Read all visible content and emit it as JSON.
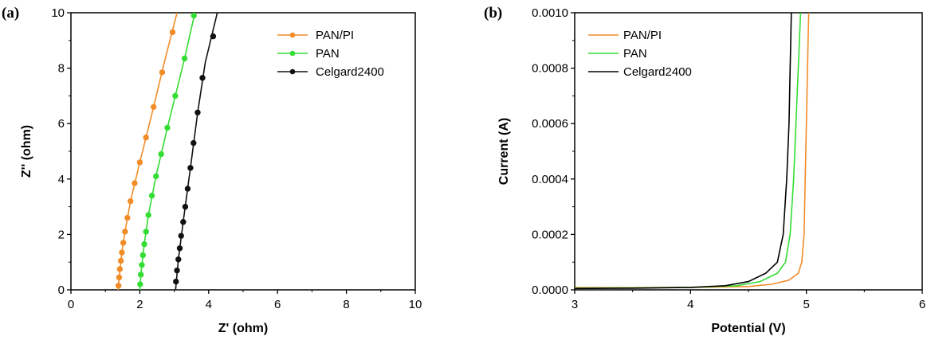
{
  "chart_data": [
    {
      "type": "scatter",
      "panel_label": "(a)",
      "xlabel": "Z' (ohm)",
      "ylabel": "Z'' (ohm)",
      "xlim": [
        0,
        10
      ],
      "ylim": [
        0,
        10
      ],
      "xticks": [
        "0",
        "2",
        "4",
        "6",
        "8",
        "10"
      ],
      "yticks": [
        "0",
        "2",
        "4",
        "6",
        "8",
        "10"
      ],
      "legend_position": "top-right",
      "series": [
        {
          "name": "PAN/PI",
          "color": "#F28C28",
          "points": [
            [
              1.38,
              0.15
            ],
            [
              1.4,
              0.45
            ],
            [
              1.42,
              0.75
            ],
            [
              1.45,
              1.05
            ],
            [
              1.48,
              1.35
            ],
            [
              1.52,
              1.7
            ],
            [
              1.57,
              2.1
            ],
            [
              1.64,
              2.6
            ],
            [
              1.73,
              3.2
            ],
            [
              1.85,
              3.85
            ],
            [
              2.0,
              4.6
            ],
            [
              2.18,
              5.5
            ],
            [
              2.4,
              6.6
            ],
            [
              2.65,
              7.85
            ],
            [
              2.95,
              9.3
            ]
          ],
          "line": [
            [
              1.37,
              0.0
            ],
            [
              1.4,
              0.45
            ],
            [
              1.48,
              1.35
            ],
            [
              1.57,
              2.1
            ],
            [
              1.73,
              3.2
            ],
            [
              2.0,
              4.6
            ],
            [
              2.4,
              6.6
            ],
            [
              2.75,
              8.4
            ],
            [
              3.08,
              10.0
            ]
          ]
        },
        {
          "name": "PAN",
          "color": "#33DD33",
          "points": [
            [
              2.01,
              0.2
            ],
            [
              2.03,
              0.55
            ],
            [
              2.06,
              0.9
            ],
            [
              2.09,
              1.25
            ],
            [
              2.13,
              1.65
            ],
            [
              2.18,
              2.1
            ],
            [
              2.25,
              2.7
            ],
            [
              2.35,
              3.4
            ],
            [
              2.47,
              4.1
            ],
            [
              2.62,
              4.9
            ],
            [
              2.8,
              5.85
            ],
            [
              3.03,
              7.0
            ],
            [
              3.3,
              8.35
            ],
            [
              3.57,
              9.9
            ]
          ],
          "line": [
            [
              2.0,
              0.0
            ],
            [
              2.03,
              0.55
            ],
            [
              2.13,
              1.65
            ],
            [
              2.25,
              2.7
            ],
            [
              2.47,
              4.1
            ],
            [
              2.8,
              5.85
            ],
            [
              3.3,
              8.35
            ],
            [
              3.6,
              10.0
            ]
          ]
        },
        {
          "name": "Celgard2400",
          "color": "#111111",
          "points": [
            [
              3.05,
              0.3
            ],
            [
              3.08,
              0.7
            ],
            [
              3.12,
              1.1
            ],
            [
              3.16,
              1.5
            ],
            [
              3.2,
              1.95
            ],
            [
              3.26,
              2.45
            ],
            [
              3.32,
              3.0
            ],
            [
              3.39,
              3.65
            ],
            [
              3.47,
              4.4
            ],
            [
              3.56,
              5.3
            ],
            [
              3.68,
              6.4
            ],
            [
              3.82,
              7.65
            ],
            [
              4.13,
              9.15
            ]
          ],
          "line": [
            [
              3.04,
              0.0
            ],
            [
              3.12,
              1.1
            ],
            [
              3.26,
              2.45
            ],
            [
              3.47,
              4.4
            ],
            [
              3.68,
              6.4
            ],
            [
              3.9,
              8.2
            ],
            [
              4.25,
              10.0
            ]
          ]
        }
      ]
    },
    {
      "type": "line",
      "panel_label": "(b)",
      "xlabel": "Potential (V)",
      "ylabel": "Current (A)",
      "xlim": [
        3,
        6
      ],
      "ylim": [
        0,
        0.001
      ],
      "xticks": [
        "3",
        "4",
        "5",
        "6"
      ],
      "yticks": [
        "0.0000",
        "0.0002",
        "0.0004",
        "0.0006",
        "0.0008",
        "0.0010"
      ],
      "legend_position": "top-left",
      "series": [
        {
          "name": "PAN/PI",
          "color": "#F28C28",
          "points": [
            [
              3.0,
              8e-06
            ],
            [
              3.5,
              8e-06
            ],
            [
              4.0,
              9e-06
            ],
            [
              4.5,
              1.2e-05
            ],
            [
              4.7,
              2e-05
            ],
            [
              4.85,
              3.5e-05
            ],
            [
              4.93,
              6e-05
            ],
            [
              4.96,
              0.0001
            ],
            [
              4.98,
              0.0002
            ],
            [
              4.99,
              0.0004
            ],
            [
              5.0,
              0.0006
            ],
            [
              5.01,
              0.0008
            ],
            [
              5.02,
              0.001
            ]
          ]
        },
        {
          "name": "PAN",
          "color": "#33DD33",
          "points": [
            [
              3.0,
              6e-06
            ],
            [
              3.5,
              7e-06
            ],
            [
              4.0,
              9e-06
            ],
            [
              4.4,
              1.5e-05
            ],
            [
              4.6,
              3e-05
            ],
            [
              4.75,
              6e-05
            ],
            [
              4.82,
              0.0001
            ],
            [
              4.86,
              0.0002
            ],
            [
              4.89,
              0.0004
            ],
            [
              4.91,
              0.0006
            ],
            [
              4.93,
              0.0008
            ],
            [
              4.95,
              0.001
            ]
          ]
        },
        {
          "name": "Celgard2400",
          "color": "#000000",
          "points": [
            [
              3.0,
              5e-06
            ],
            [
              3.5,
              6e-06
            ],
            [
              4.0,
              9e-06
            ],
            [
              4.3,
              1.5e-05
            ],
            [
              4.5,
              3e-05
            ],
            [
              4.65,
              6e-05
            ],
            [
              4.75,
              0.0001
            ],
            [
              4.8,
              0.0002
            ],
            [
              4.83,
              0.0004
            ],
            [
              4.85,
              0.0006
            ],
            [
              4.86,
              0.0008
            ],
            [
              4.87,
              0.001
            ]
          ]
        }
      ]
    }
  ]
}
